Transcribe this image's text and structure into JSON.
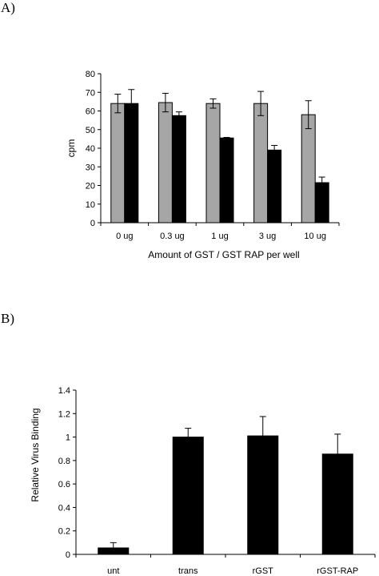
{
  "panels": {
    "a_label": "A)",
    "b_label": "B)"
  },
  "chart_data": [
    {
      "type": "bar",
      "title": "",
      "categories": [
        "0 ug",
        "0.3 ug",
        "1 ug",
        "3 ug",
        "10 ug"
      ],
      "series": [
        {
          "values": [
            64,
            64.5,
            64,
            64,
            58
          ],
          "errors": [
            5,
            5,
            2.5,
            6.5,
            7.5
          ],
          "color": "#a6a6a6"
        },
        {
          "values": [
            64,
            57.5,
            45.5,
            39,
            21.5
          ],
          "errors": [
            7.5,
            2,
            0.3,
            2.5,
            3
          ],
          "color": "#000000"
        }
      ],
      "xlabel": "Amount of GST / GST RAP per well",
      "ylabel": "cpm",
      "ylim": [
        0,
        80
      ],
      "yticks": [
        "0",
        "10",
        "20",
        "30",
        "40",
        "50",
        "60",
        "70",
        "80"
      ],
      "grid": false,
      "legend": "none"
    },
    {
      "type": "bar",
      "title": "",
      "categories": [
        "unt",
        "trans",
        "rGST",
        "rGST-RAP"
      ],
      "series": [
        {
          "values": [
            0.055,
            1.0,
            1.01,
            0.855
          ],
          "errors": [
            0.045,
            0.075,
            0.165,
            0.17
          ],
          "color": "#000000"
        }
      ],
      "xlabel": "",
      "ylabel": "Relative Virus Binding",
      "ylim": [
        0,
        1.4
      ],
      "yticks": [
        "0",
        "0.2",
        "0.4",
        "0.6",
        "0.8",
        "1",
        "1.2",
        "1.4"
      ],
      "grid": false,
      "legend": "none"
    }
  ]
}
